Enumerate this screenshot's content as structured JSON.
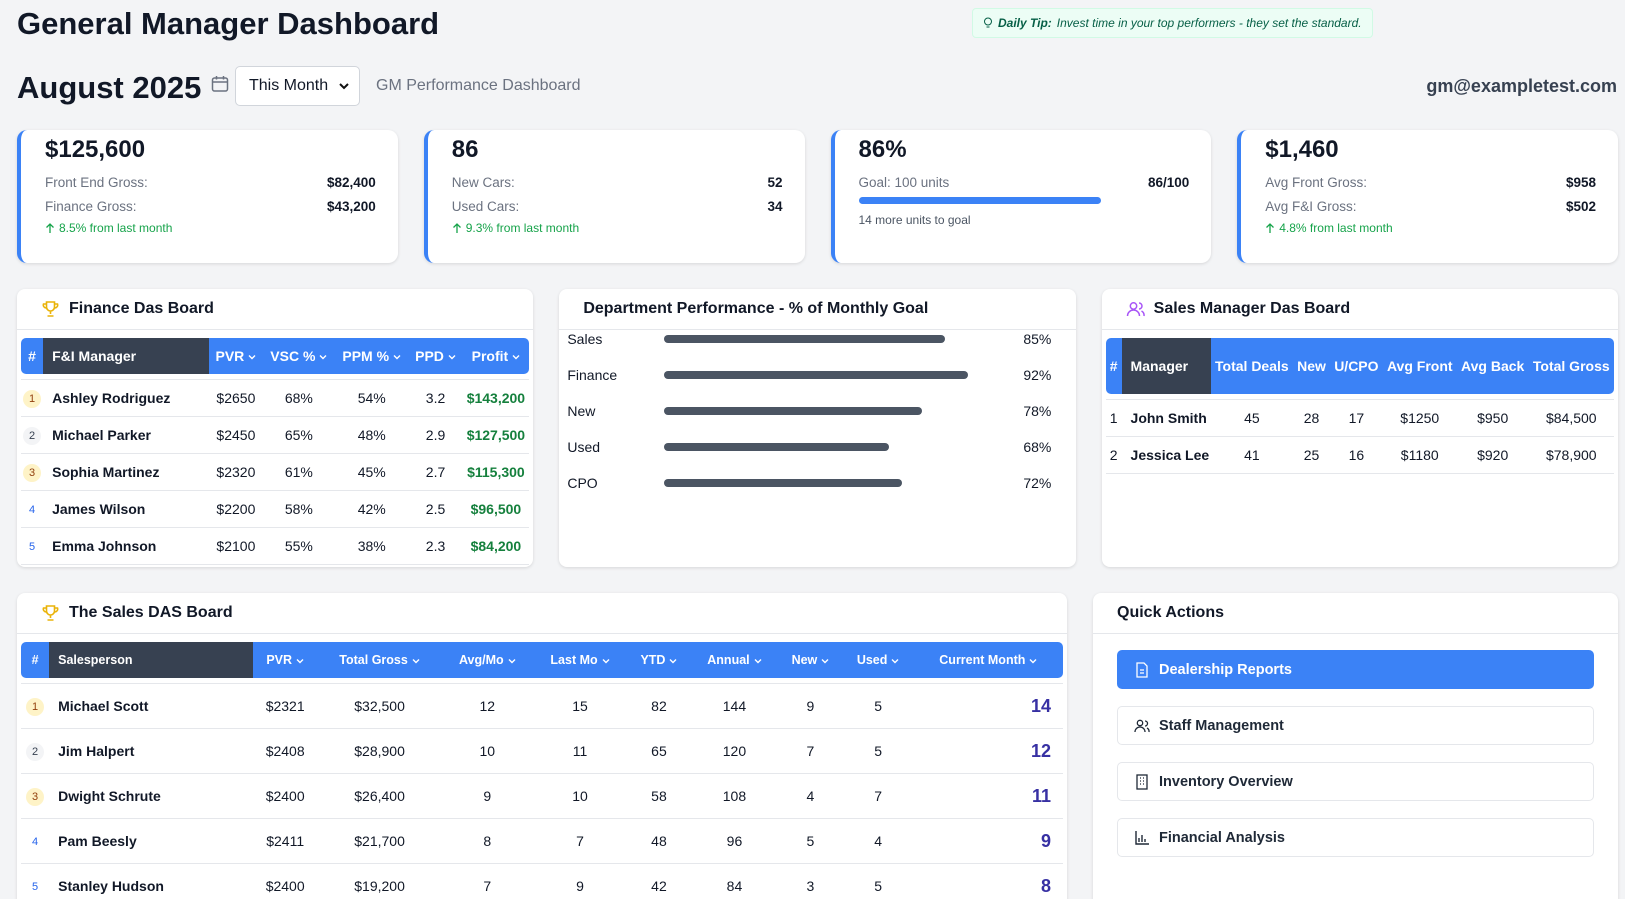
{
  "header": {
    "title": "General Manager Dashboard",
    "tip_label": "Daily Tip:",
    "tip_text": "Invest time in your top performers - they set the standard.",
    "month": "August 2025",
    "period_select": "This Month",
    "subtitle": "GM Performance Dashboard",
    "user": "gm@exampletest.com"
  },
  "kpis": [
    {
      "value": "$125,600",
      "rows": [
        [
          "Front End Gross:",
          "$82,400"
        ],
        [
          "Finance Gross:",
          "$43,200"
        ]
      ],
      "trend": "8.5% from last month"
    },
    {
      "value": "86",
      "rows": [
        [
          "New Cars:",
          "52"
        ],
        [
          "Used Cars:",
          "34"
        ]
      ],
      "trend": "9.3% from last month"
    },
    {
      "value": "86%",
      "goal_label": "Goal: 100 units",
      "goal_value_label": "86/100",
      "progress": 86,
      "progress_max": 100,
      "note": "14 more units to goal"
    },
    {
      "value": "$1,460",
      "rows": [
        [
          "Avg Front Gross:",
          "$958"
        ],
        [
          "Avg F&I Gross:",
          "$502"
        ]
      ],
      "trend": "4.8% from last month"
    }
  ],
  "finance_board": {
    "title": "Finance Das Board",
    "columns": [
      "#",
      "F&I Manager",
      "PVR",
      "VSC %",
      "PPM %",
      "PPD",
      "Profit"
    ],
    "rows": [
      [
        "1",
        "Ashley Rodriguez",
        "$2650",
        "68%",
        "54%",
        "3.2",
        "$143,200"
      ],
      [
        "2",
        "Michael Parker",
        "$2450",
        "65%",
        "48%",
        "2.9",
        "$127,500"
      ],
      [
        "3",
        "Sophia Martinez",
        "$2320",
        "61%",
        "45%",
        "2.7",
        "$115,300"
      ],
      [
        "4",
        "James Wilson",
        "$2200",
        "58%",
        "42%",
        "2.5",
        "$96,500"
      ],
      [
        "5",
        "Emma Johnson",
        "$2100",
        "55%",
        "38%",
        "2.3",
        "$84,200"
      ]
    ]
  },
  "department_performance": {
    "title": "Department Performance - % of Monthly Goal",
    "categories": [
      "Sales",
      "Finance",
      "New",
      "Used",
      "CPO"
    ],
    "values": [
      85,
      92,
      78,
      68,
      72
    ],
    "value_labels": [
      "85%",
      "92%",
      "78%",
      "68%",
      "72%"
    ],
    "xlim": [
      0,
      100
    ]
  },
  "sales_manager_board": {
    "title": "Sales Manager Das Board",
    "columns": [
      "#",
      "Manager",
      "Total Deals",
      "New",
      "U/CPO",
      "Avg Front",
      "Avg Back",
      "Total Gross"
    ],
    "rows": [
      [
        "1",
        "John Smith",
        "45",
        "28",
        "17",
        "$1250",
        "$950",
        "$84,500"
      ],
      [
        "2",
        "Jessica Lee",
        "41",
        "25",
        "16",
        "$1180",
        "$920",
        "$78,900"
      ]
    ]
  },
  "sales_board": {
    "title": "The Sales DAS Board",
    "columns": [
      "#",
      "Salesperson",
      "PVR",
      "Total Gross",
      "Avg/Mo",
      "Last Mo",
      "YTD",
      "Annual",
      "New",
      "Used",
      "Current Month"
    ],
    "rows": [
      [
        "1",
        "Michael Scott",
        "$2321",
        "$32,500",
        "12",
        "15",
        "82",
        "144",
        "9",
        "5",
        "14"
      ],
      [
        "2",
        "Jim Halpert",
        "$2408",
        "$28,900",
        "10",
        "11",
        "65",
        "120",
        "7",
        "5",
        "12"
      ],
      [
        "3",
        "Dwight Schrute",
        "$2400",
        "$26,400",
        "9",
        "10",
        "58",
        "108",
        "4",
        "7",
        "11"
      ],
      [
        "4",
        "Pam Beesly",
        "$2411",
        "$21,700",
        "8",
        "7",
        "48",
        "96",
        "5",
        "4",
        "9"
      ],
      [
        "5",
        "Stanley Hudson",
        "$2400",
        "$19,200",
        "7",
        "9",
        "42",
        "84",
        "3",
        "5",
        "8"
      ]
    ]
  },
  "quick_actions": {
    "title": "Quick Actions",
    "items": [
      "Dealership Reports",
      "Staff Management",
      "Inventory Overview",
      "Financial Analysis"
    ]
  }
}
